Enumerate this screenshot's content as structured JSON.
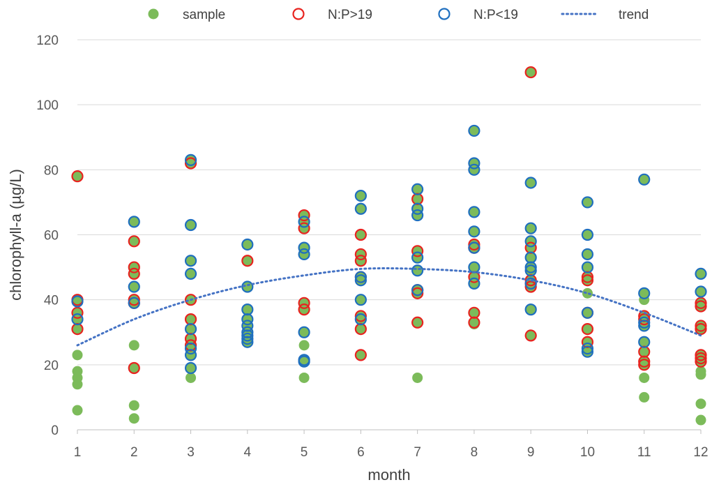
{
  "chart_data": {
    "type": "scatter",
    "xlabel": "month",
    "ylabel": "chlorophyll-a (µg/L)",
    "xlim": [
      1,
      12
    ],
    "ylim": [
      0,
      120
    ],
    "x_ticks": [
      1,
      2,
      3,
      4,
      5,
      6,
      7,
      8,
      9,
      10,
      11,
      12
    ],
    "y_ticks": [
      0,
      20,
      40,
      60,
      80,
      100,
      120
    ],
    "grid": "horizontal",
    "legend_position": "top",
    "legend": [
      {
        "name": "sample",
        "marker": "filled-circle",
        "color": "#7cbb5a"
      },
      {
        "name": "N:P>19",
        "marker": "open-circle",
        "color": "#e8231f"
      },
      {
        "name": "N:P<19",
        "marker": "open-circle",
        "color": "#1f6fbf"
      },
      {
        "name": "trend",
        "marker": "dotted-line",
        "color": "#4472c4"
      }
    ],
    "series": [
      {
        "name": "sample",
        "color": "#7cbb5a",
        "points": [
          [
            1,
            78
          ],
          [
            1,
            40
          ],
          [
            1,
            39.5
          ],
          [
            1,
            36
          ],
          [
            1,
            34
          ],
          [
            1,
            31
          ],
          [
            1,
            23
          ],
          [
            1,
            18
          ],
          [
            1,
            16
          ],
          [
            1,
            14
          ],
          [
            1,
            6
          ],
          [
            2,
            64
          ],
          [
            2,
            58
          ],
          [
            2,
            50
          ],
          [
            2,
            48
          ],
          [
            2,
            44
          ],
          [
            2,
            40
          ],
          [
            2,
            39
          ],
          [
            2,
            26
          ],
          [
            2,
            19
          ],
          [
            2,
            7.5
          ],
          [
            2,
            3.5
          ],
          [
            3,
            83
          ],
          [
            3,
            82
          ],
          [
            3,
            63
          ],
          [
            3,
            52
          ],
          [
            3,
            48
          ],
          [
            3,
            40
          ],
          [
            3,
            34
          ],
          [
            3,
            31
          ],
          [
            3,
            28
          ],
          [
            3,
            26
          ],
          [
            3,
            25
          ],
          [
            3,
            23
          ],
          [
            3,
            19
          ],
          [
            3,
            16
          ],
          [
            4,
            57
          ],
          [
            4,
            52
          ],
          [
            4,
            44
          ],
          [
            4,
            37
          ],
          [
            4,
            34
          ],
          [
            4,
            32
          ],
          [
            4,
            30
          ],
          [
            4,
            29
          ],
          [
            4,
            28
          ],
          [
            4,
            27
          ],
          [
            5,
            66
          ],
          [
            5,
            64
          ],
          [
            5,
            62
          ],
          [
            5,
            56
          ],
          [
            5,
            54
          ],
          [
            5,
            39
          ],
          [
            5,
            37
          ],
          [
            5,
            30
          ],
          [
            5,
            26
          ],
          [
            5,
            21.5
          ],
          [
            5,
            21
          ],
          [
            5,
            16
          ],
          [
            6,
            72
          ],
          [
            6,
            68
          ],
          [
            6,
            60
          ],
          [
            6,
            54
          ],
          [
            6,
            52
          ],
          [
            6,
            47
          ],
          [
            6,
            46
          ],
          [
            6,
            40
          ],
          [
            6,
            35
          ],
          [
            6,
            34
          ],
          [
            6,
            31
          ],
          [
            6,
            23
          ],
          [
            7,
            74
          ],
          [
            7,
            71
          ],
          [
            7,
            68
          ],
          [
            7,
            66
          ],
          [
            7,
            55
          ],
          [
            7,
            53
          ],
          [
            7,
            49
          ],
          [
            7,
            43
          ],
          [
            7,
            42
          ],
          [
            7,
            33
          ],
          [
            7,
            16
          ],
          [
            8,
            92
          ],
          [
            8,
            82
          ],
          [
            8,
            80
          ],
          [
            8,
            67
          ],
          [
            8,
            61
          ],
          [
            8,
            57
          ],
          [
            8,
            56
          ],
          [
            8,
            50
          ],
          [
            8,
            47
          ],
          [
            8,
            45
          ],
          [
            8,
            36
          ],
          [
            8,
            33
          ],
          [
            8,
            32.5
          ],
          [
            9,
            110
          ],
          [
            9,
            76
          ],
          [
            9,
            62
          ],
          [
            9,
            58
          ],
          [
            9,
            56
          ],
          [
            9,
            53
          ],
          [
            9,
            50
          ],
          [
            9,
            49
          ],
          [
            9,
            46
          ],
          [
            9,
            45
          ],
          [
            9,
            44
          ],
          [
            9,
            37
          ],
          [
            9,
            29
          ],
          [
            10,
            70
          ],
          [
            10,
            60
          ],
          [
            10,
            54
          ],
          [
            10,
            50
          ],
          [
            10,
            47
          ],
          [
            10,
            46
          ],
          [
            10,
            42
          ],
          [
            10,
            36
          ],
          [
            10,
            31
          ],
          [
            10,
            27
          ],
          [
            10,
            25
          ],
          [
            10,
            24
          ],
          [
            11,
            77
          ],
          [
            11,
            42
          ],
          [
            11,
            40
          ],
          [
            11,
            35
          ],
          [
            11,
            34
          ],
          [
            11,
            33
          ],
          [
            11,
            32
          ],
          [
            11,
            27
          ],
          [
            11,
            24
          ],
          [
            11,
            21
          ],
          [
            11,
            20
          ],
          [
            11,
            16
          ],
          [
            11,
            10
          ],
          [
            12,
            48
          ],
          [
            12,
            42.5
          ],
          [
            12,
            39
          ],
          [
            12,
            38
          ],
          [
            12,
            32
          ],
          [
            12,
            31
          ],
          [
            12,
            23
          ],
          [
            12,
            22
          ],
          [
            12,
            21
          ],
          [
            12,
            18
          ],
          [
            12,
            17
          ],
          [
            12,
            8
          ],
          [
            12,
            3
          ]
        ]
      },
      {
        "name": "N:P>19",
        "color": "#e8231f",
        "points": [
          [
            1,
            78
          ],
          [
            1,
            40
          ],
          [
            1,
            36
          ],
          [
            1,
            31
          ],
          [
            2,
            58
          ],
          [
            2,
            50
          ],
          [
            2,
            48
          ],
          [
            2,
            40
          ],
          [
            2,
            39
          ],
          [
            2,
            19
          ],
          [
            3,
            82
          ],
          [
            3,
            40
          ],
          [
            3,
            34
          ],
          [
            3,
            28
          ],
          [
            3,
            26
          ],
          [
            4,
            52
          ],
          [
            5,
            66
          ],
          [
            5,
            62
          ],
          [
            5,
            39
          ],
          [
            5,
            37
          ],
          [
            6,
            60
          ],
          [
            6,
            54
          ],
          [
            6,
            52
          ],
          [
            6,
            47
          ],
          [
            6,
            35
          ],
          [
            6,
            31
          ],
          [
            6,
            23
          ],
          [
            7,
            71
          ],
          [
            7,
            55
          ],
          [
            7,
            43
          ],
          [
            7,
            42
          ],
          [
            7,
            33
          ],
          [
            8,
            57
          ],
          [
            8,
            56
          ],
          [
            8,
            47
          ],
          [
            8,
            36
          ],
          [
            8,
            33
          ],
          [
            9,
            110
          ],
          [
            9,
            56
          ],
          [
            9,
            46
          ],
          [
            9,
            45
          ],
          [
            9,
            44
          ],
          [
            9,
            29
          ],
          [
            10,
            47
          ],
          [
            10,
            46
          ],
          [
            10,
            36
          ],
          [
            10,
            31
          ],
          [
            10,
            27
          ],
          [
            11,
            35
          ],
          [
            11,
            34
          ],
          [
            11,
            24
          ],
          [
            11,
            21
          ],
          [
            11,
            20
          ],
          [
            12,
            39
          ],
          [
            12,
            38
          ],
          [
            12,
            32
          ],
          [
            12,
            31
          ],
          [
            12,
            23
          ],
          [
            12,
            22
          ],
          [
            12,
            21
          ]
        ]
      },
      {
        "name": "N:P<19",
        "color": "#1f6fbf",
        "points": [
          [
            1,
            39.5
          ],
          [
            1,
            34
          ],
          [
            2,
            64
          ],
          [
            2,
            44
          ],
          [
            2,
            39
          ],
          [
            3,
            83
          ],
          [
            3,
            63
          ],
          [
            3,
            52
          ],
          [
            3,
            48
          ],
          [
            3,
            31
          ],
          [
            3,
            25
          ],
          [
            3,
            23
          ],
          [
            3,
            19
          ],
          [
            4,
            57
          ],
          [
            4,
            44
          ],
          [
            4,
            37
          ],
          [
            4,
            34
          ],
          [
            4,
            32
          ],
          [
            4,
            30
          ],
          [
            4,
            29
          ],
          [
            4,
            28
          ],
          [
            4,
            27
          ],
          [
            5,
            64
          ],
          [
            5,
            56
          ],
          [
            5,
            54
          ],
          [
            5,
            30
          ],
          [
            5,
            21.5
          ],
          [
            5,
            21
          ],
          [
            6,
            72
          ],
          [
            6,
            68
          ],
          [
            6,
            47
          ],
          [
            6,
            46
          ],
          [
            6,
            40
          ],
          [
            6,
            34
          ],
          [
            7,
            74
          ],
          [
            7,
            68
          ],
          [
            7,
            66
          ],
          [
            7,
            53
          ],
          [
            7,
            49
          ],
          [
            7,
            43
          ],
          [
            8,
            92
          ],
          [
            8,
            82
          ],
          [
            8,
            80
          ],
          [
            8,
            67
          ],
          [
            8,
            61
          ],
          [
            8,
            56
          ],
          [
            8,
            50
          ],
          [
            8,
            45
          ],
          [
            9,
            76
          ],
          [
            9,
            62
          ],
          [
            9,
            58
          ],
          [
            9,
            53
          ],
          [
            9,
            50
          ],
          [
            9,
            49
          ],
          [
            9,
            45
          ],
          [
            9,
            37
          ],
          [
            10,
            70
          ],
          [
            10,
            60
          ],
          [
            10,
            54
          ],
          [
            10,
            50
          ],
          [
            10,
            36
          ],
          [
            10,
            25
          ],
          [
            10,
            24
          ],
          [
            11,
            77
          ],
          [
            11,
            42
          ],
          [
            11,
            33
          ],
          [
            11,
            32
          ],
          [
            11,
            27
          ],
          [
            12,
            48
          ],
          [
            12,
            42.5
          ]
        ]
      },
      {
        "name": "trend",
        "color": "#4472c4",
        "style": "dotted",
        "x": [
          1,
          2,
          3,
          4,
          5,
          6,
          7,
          8,
          9,
          10,
          11,
          12
        ],
        "y": [
          26,
          34,
          40,
          44.5,
          47.5,
          49.5,
          49.5,
          48.5,
          46,
          42,
          36,
          29
        ]
      }
    ]
  }
}
